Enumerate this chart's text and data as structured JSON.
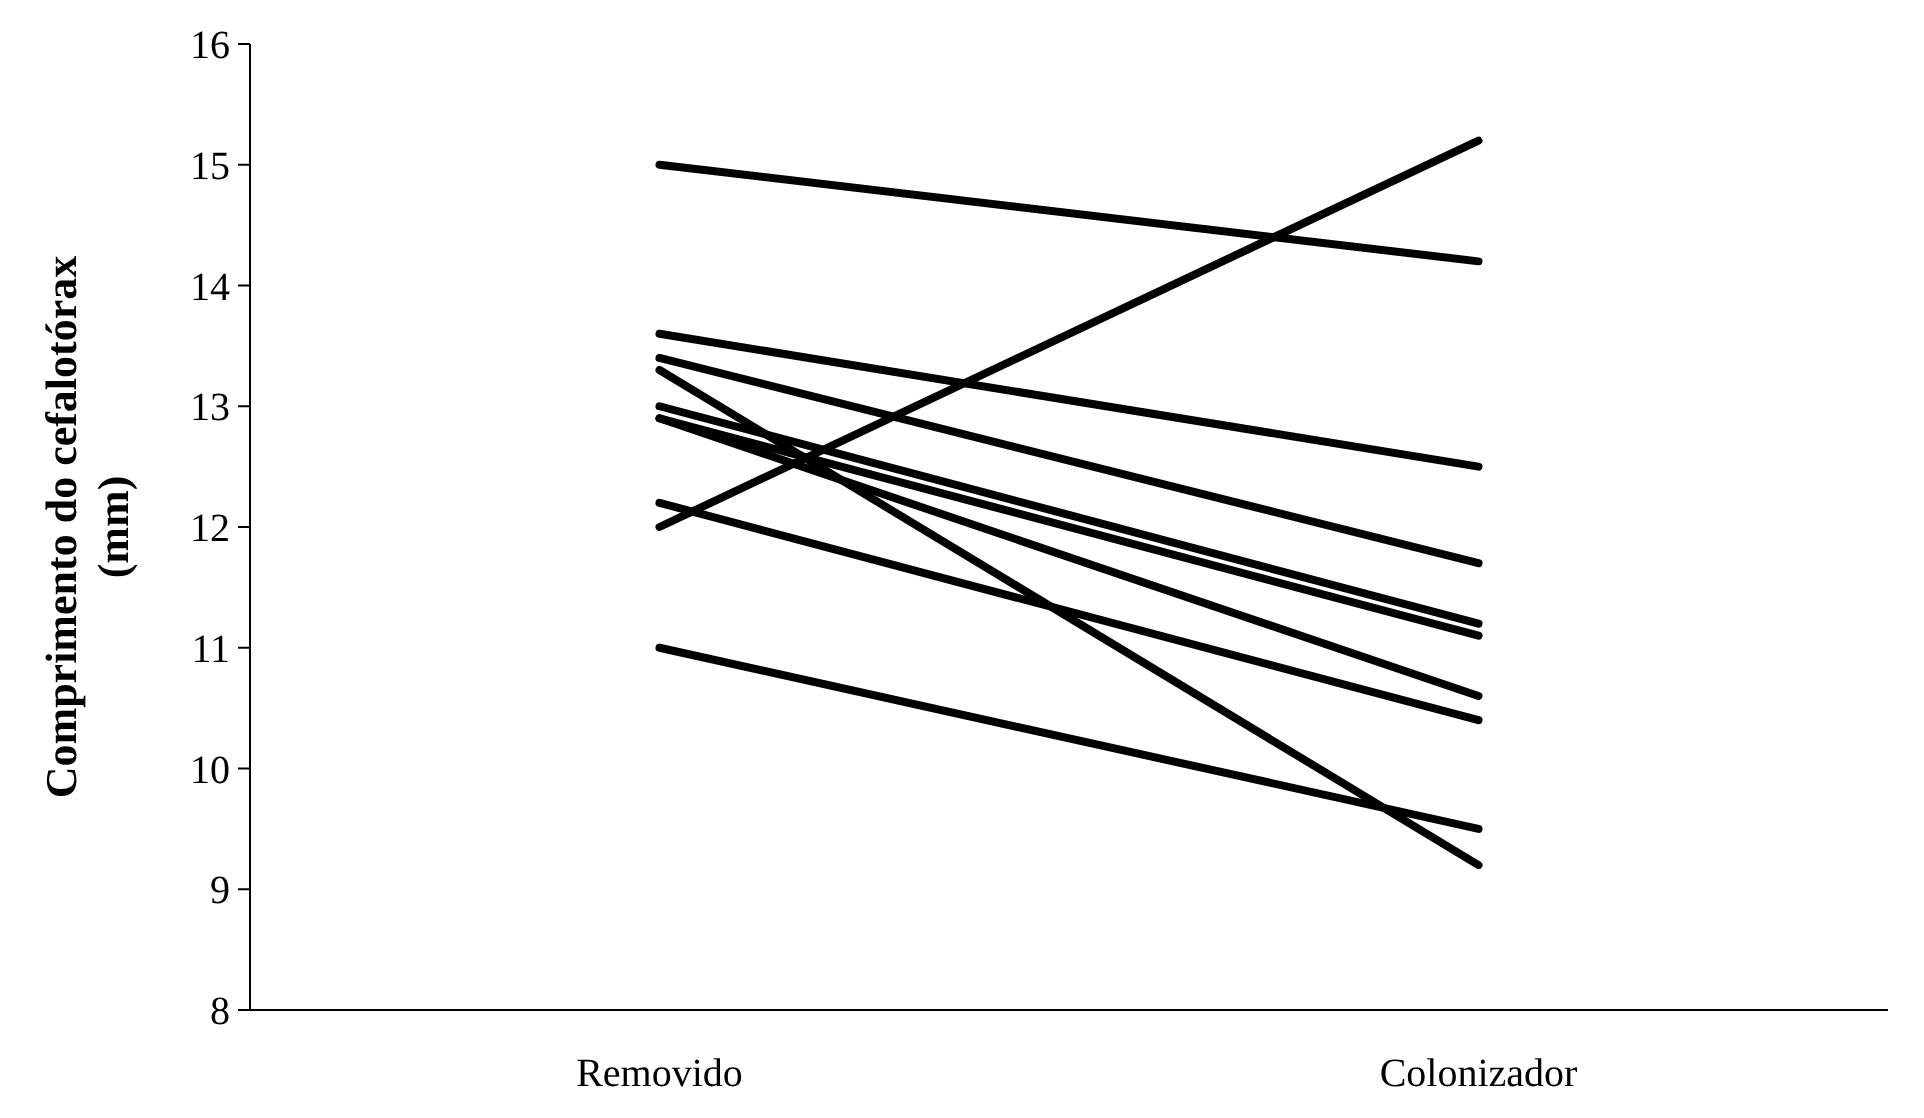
{
  "chart_data": {
    "type": "line",
    "ylabel": "Comprimento do cefalotórax (mm)",
    "categories": [
      "Removido",
      "Colonizador"
    ],
    "ylim": [
      8,
      16
    ],
    "yticks": [
      8,
      9,
      10,
      11,
      12,
      13,
      14,
      15,
      16
    ],
    "marker": "none",
    "line_style": "solid",
    "series": [
      {
        "color": "#000000",
        "values": [
          15.0,
          14.2
        ]
      },
      {
        "color": "#000000",
        "values": [
          12.0,
          15.2
        ]
      },
      {
        "color": "#000000",
        "values": [
          13.6,
          12.5
        ]
      },
      {
        "color": "#000000",
        "values": [
          13.4,
          11.7
        ]
      },
      {
        "color": "#000000",
        "values": [
          13.0,
          11.2
        ]
      },
      {
        "color": "#000000",
        "values": [
          12.9,
          11.1
        ]
      },
      {
        "color": "#000000",
        "values": [
          12.9,
          10.6
        ]
      },
      {
        "color": "#000000",
        "values": [
          12.2,
          10.4
        ]
      },
      {
        "color": "#000000",
        "values": [
          11.0,
          9.5
        ]
      },
      {
        "color": "#000000",
        "values": [
          13.3,
          9.2
        ]
      }
    ]
  }
}
